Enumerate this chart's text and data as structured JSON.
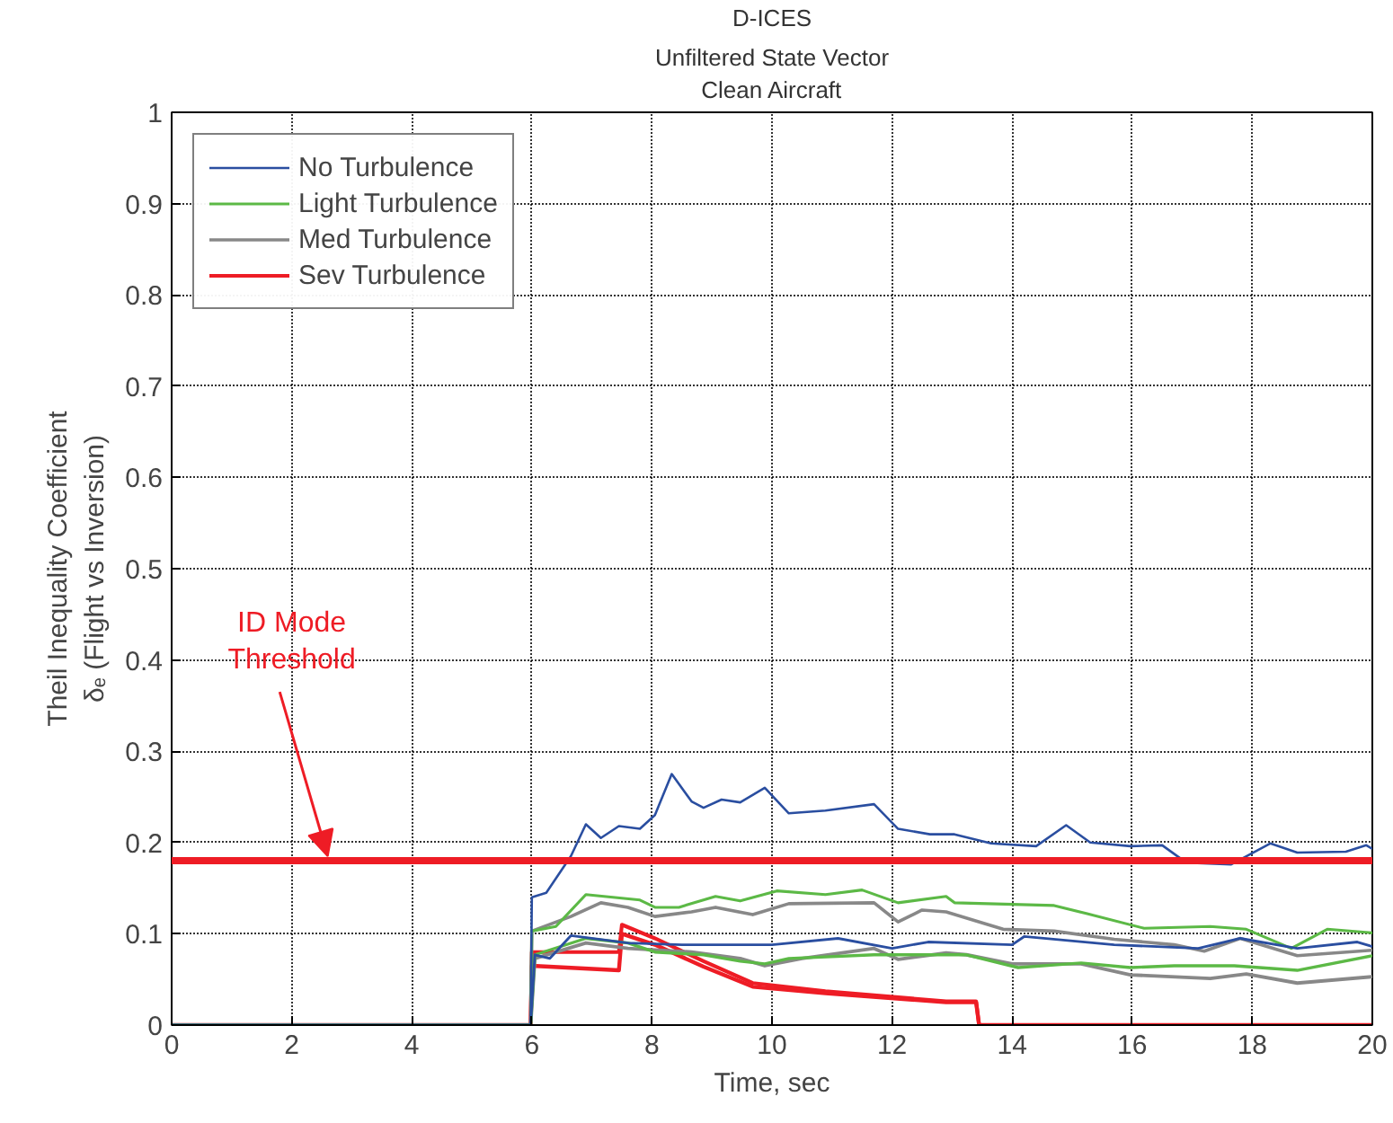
{
  "chart_data": {
    "type": "line",
    "title": "D-ICES",
    "subtitle": "Unfiltered State Vector\nClean Aircraft",
    "xlabel": "Time, sec",
    "ylabel": "Theil Inequality Coefficient\nδₑ (Flight vs Inversion)",
    "xlim": [
      0,
      20
    ],
    "xticks": [
      0,
      2,
      4,
      6,
      8,
      10,
      12,
      14,
      16,
      18,
      20
    ],
    "ylim": [
      0,
      1
    ],
    "yticks": [
      0,
      0.1,
      0.2,
      0.3,
      0.4,
      0.5,
      0.6,
      0.7,
      0.8,
      0.9,
      1
    ],
    "grid": true,
    "legend": "top left",
    "line_style": "solid",
    "marker": "none",
    "ref_lines": [
      {
        "axis": "y",
        "value": 0.18,
        "label": "ID Mode\nThreshold",
        "color": "#ee1c25"
      }
    ],
    "series": [
      {
        "name": "No Turbulence",
        "color": "#2a4ea0",
        "x": [
          0,
          5.98,
          6.0,
          6.24,
          6.65,
          6.9,
          7.15,
          7.45,
          7.8,
          8.05,
          8.33,
          8.66,
          8.86,
          9.16,
          9.47,
          9.88,
          10.28,
          10.89,
          11.7,
          12.1,
          12.63,
          13.04,
          13.65,
          14.4,
          14.9,
          15.3,
          15.97,
          16.5,
          16.9,
          17.65,
          18.3,
          18.75,
          19.56,
          19.9,
          20
        ],
        "values": [
          0,
          0,
          0.14,
          0.145,
          0.185,
          0.22,
          0.205,
          0.218,
          0.215,
          0.23,
          0.275,
          0.245,
          0.238,
          0.247,
          0.244,
          0.26,
          0.232,
          0.235,
          0.242,
          0.215,
          0.209,
          0.209,
          0.199,
          0.196,
          0.219,
          0.2,
          0.196,
          0.197,
          0.178,
          0.176,
          0.199,
          0.189,
          0.19,
          0.197,
          0.193
        ]
      },
      {
        "color": "#2a4ea0",
        "x": [
          0,
          5.98,
          6.05,
          6.3,
          6.65,
          7.6,
          8.5,
          10.0,
          11.1,
          12.0,
          12.6,
          14.0,
          14.2,
          15.7,
          17.1,
          17.8,
          18.75,
          19.75,
          20
        ],
        "values": [
          0,
          0,
          0.077,
          0.073,
          0.098,
          0.09,
          0.088,
          0.088,
          0.095,
          0.084,
          0.091,
          0.088,
          0.097,
          0.088,
          0.084,
          0.095,
          0.084,
          0.091,
          0.086
        ]
      },
      {
        "name": "Light Turbulence",
        "color": "#5cb946",
        "x": [
          0,
          5.98,
          6.0,
          6.4,
          6.9,
          7.8,
          8.05,
          8.45,
          9.06,
          9.47,
          10.08,
          10.89,
          11.5,
          12.1,
          12.9,
          13.04,
          14.7,
          15.25,
          16.2,
          17.3,
          17.9,
          18.65,
          19.25,
          20
        ],
        "values": [
          0,
          0,
          0.103,
          0.108,
          0.143,
          0.137,
          0.129,
          0.129,
          0.141,
          0.136,
          0.147,
          0.143,
          0.148,
          0.134,
          0.141,
          0.134,
          0.131,
          0.122,
          0.106,
          0.108,
          0.105,
          0.084,
          0.105,
          0.101
        ]
      },
      {
        "color": "#5cb946",
        "x": [
          0,
          5.98,
          6.05,
          6.9,
          7.6,
          8.05,
          8.86,
          9.47,
          9.88,
          10.28,
          11.7,
          12.9,
          13.24,
          14.1,
          15.15,
          15.97,
          16.7,
          17.7,
          18.75,
          20
        ],
        "values": [
          0,
          0,
          0.077,
          0.095,
          0.09,
          0.08,
          0.077,
          0.07,
          0.067,
          0.073,
          0.077,
          0.077,
          0.077,
          0.063,
          0.068,
          0.063,
          0.065,
          0.065,
          0.06,
          0.076
        ]
      },
      {
        "name": "Med Turbulence",
        "color": "#888888",
        "x": [
          0,
          5.98,
          6.0,
          6.65,
          7.15,
          7.6,
          8.05,
          8.66,
          9.06,
          9.68,
          10.28,
          11.7,
          12.1,
          12.5,
          12.9,
          13.85,
          14.7,
          15.7,
          16.7,
          17.2,
          17.8,
          18.75,
          20
        ],
        "values": [
          0,
          0,
          0.103,
          0.119,
          0.134,
          0.129,
          0.119,
          0.124,
          0.129,
          0.121,
          0.133,
          0.134,
          0.113,
          0.126,
          0.124,
          0.105,
          0.103,
          0.094,
          0.088,
          0.081,
          0.095,
          0.076,
          0.082
        ]
      },
      {
        "color": "#888888",
        "x": [
          0,
          5.98,
          6.05,
          6.9,
          7.6,
          8.66,
          9.47,
          9.88,
          10.5,
          11.7,
          12.1,
          12.9,
          13.24,
          14.0,
          15.15,
          15.97,
          17.3,
          17.9,
          18.75,
          20
        ],
        "values": [
          0,
          0,
          0.073,
          0.09,
          0.084,
          0.08,
          0.073,
          0.065,
          0.073,
          0.084,
          0.072,
          0.079,
          0.077,
          0.067,
          0.067,
          0.055,
          0.051,
          0.056,
          0.046,
          0.053
        ]
      },
      {
        "name": "Sev Turbulence",
        "color": "#ee1c25",
        "x": [
          0,
          5.98,
          6.0,
          7.45,
          7.5,
          8.05,
          8.86,
          9.68,
          10.89,
          12.9,
          13.4,
          13.45,
          20
        ],
        "values": [
          0,
          0,
          0.08,
          0.08,
          0.11,
          0.095,
          0.07,
          0.046,
          0.037,
          0.026,
          0.026,
          0,
          0
        ]
      },
      {
        "color": "#ee1c25",
        "x": [
          0,
          5.98,
          6.0,
          7.45,
          7.5,
          8.05,
          8.86,
          9.68,
          10.89,
          12.9,
          13.4,
          13.45,
          20
        ],
        "values": [
          0,
          0,
          0.065,
          0.06,
          0.1,
          0.088,
          0.064,
          0.042,
          0.035,
          0.025,
          0.025,
          0,
          0
        ]
      }
    ]
  }
}
